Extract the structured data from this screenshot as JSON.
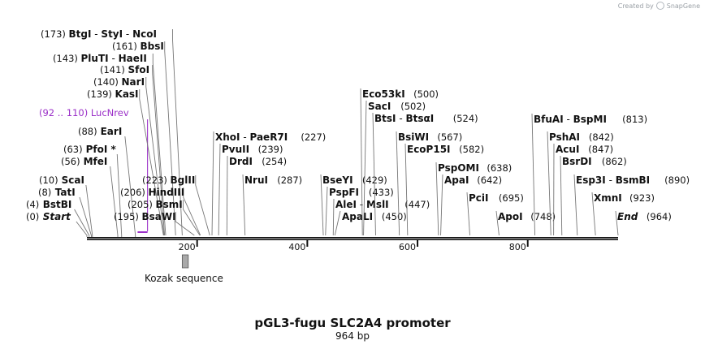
{
  "watermark": {
    "prefix": "Created by",
    "brand": "SnapGene",
    "logo_icon": "snapgene-logo-icon"
  },
  "plasmid": {
    "name": "pGL3-fugu SLC2A4 promoter",
    "length_label": "964 bp",
    "length": 964
  },
  "axis": {
    "ticks": [
      200,
      400,
      600,
      800
    ]
  },
  "features": [
    {
      "name": "Kozak sequence",
      "start": 173,
      "end": 184,
      "color": "#a9a9a9"
    }
  ],
  "primers": [
    {
      "name": "LucNrev",
      "range_label": "(92 .. 110)",
      "start": 92,
      "end": 110,
      "color": "#9b30c8"
    }
  ],
  "sites": [
    {
      "pos": 0,
      "pos_label": "(0)",
      "names": [
        "Start"
      ],
      "italic": true
    },
    {
      "pos": 4,
      "pos_label": "(4)",
      "names": [
        "BstBI"
      ]
    },
    {
      "pos": 8,
      "pos_label": "(8)",
      "names": [
        "TatI"
      ]
    },
    {
      "pos": 10,
      "pos_label": "(10)",
      "names": [
        "ScaI"
      ]
    },
    {
      "pos": 56,
      "pos_label": "(56)",
      "names": [
        "MfeI"
      ]
    },
    {
      "pos": 63,
      "pos_label": "(63)",
      "names": [
        "PfoI *"
      ]
    },
    {
      "pos": 88,
      "pos_label": "(88)",
      "names": [
        "EarI"
      ]
    },
    {
      "pos": 139,
      "pos_label": "(139)",
      "names": [
        "KasI"
      ]
    },
    {
      "pos": 140,
      "pos_label": "(140)",
      "names": [
        "NarI"
      ]
    },
    {
      "pos": 141,
      "pos_label": "(141)",
      "names": [
        "SfoI"
      ]
    },
    {
      "pos": 143,
      "pos_label": "(143)",
      "names": [
        "PluTI",
        "HaeII"
      ]
    },
    {
      "pos": 161,
      "pos_label": "(161)",
      "names": [
        "BbsI"
      ]
    },
    {
      "pos": 173,
      "pos_label": "(173)",
      "names": [
        "BtgI",
        "StyI",
        "NcoI"
      ]
    },
    {
      "pos": 195,
      "pos_label": "(195)",
      "names": [
        "BsaWI"
      ]
    },
    {
      "pos": 205,
      "pos_label": "(205)",
      "names": [
        "BsmI"
      ]
    },
    {
      "pos": 206,
      "pos_label": "(206)",
      "names": [
        "HindIII"
      ]
    },
    {
      "pos": 223,
      "pos_label": "(223)",
      "names": [
        "BglII"
      ]
    },
    {
      "pos": 227,
      "pos_label": "(227)",
      "names": [
        "XhoI",
        "PaeR7I"
      ]
    },
    {
      "pos": 239,
      "pos_label": "(239)",
      "names": [
        "PvuII"
      ]
    },
    {
      "pos": 254,
      "pos_label": "(254)",
      "names": [
        "DrdI"
      ]
    },
    {
      "pos": 287,
      "pos_label": "(287)",
      "names": [
        "NruI"
      ]
    },
    {
      "pos": 429,
      "pos_label": "(429)",
      "names": [
        "BseYI"
      ]
    },
    {
      "pos": 433,
      "pos_label": "(433)",
      "names": [
        "PspFI"
      ]
    },
    {
      "pos": 447,
      "pos_label": "(447)",
      "names": [
        "AleI",
        "MslI"
      ]
    },
    {
      "pos": 450,
      "pos_label": "(450)",
      "names": [
        "ApaLI"
      ]
    },
    {
      "pos": 500,
      "pos_label": "(500)",
      "names": [
        "Eco53kI"
      ]
    },
    {
      "pos": 502,
      "pos_label": "(502)",
      "names": [
        "SacI"
      ]
    },
    {
      "pos": 524,
      "pos_label": "(524)",
      "names": [
        "BtsI",
        "BtsαI"
      ]
    },
    {
      "pos": 567,
      "pos_label": "(567)",
      "names": [
        "BsiWI"
      ]
    },
    {
      "pos": 582,
      "pos_label": "(582)",
      "names": [
        "EcoP15I"
      ]
    },
    {
      "pos": 638,
      "pos_label": "(638)",
      "names": [
        "PspOMI"
      ]
    },
    {
      "pos": 642,
      "pos_label": "(642)",
      "names": [
        "ApaI"
      ]
    },
    {
      "pos": 695,
      "pos_label": "(695)",
      "names": [
        "PciI"
      ]
    },
    {
      "pos": 748,
      "pos_label": "(748)",
      "names": [
        "ApoI"
      ]
    },
    {
      "pos": 813,
      "pos_label": "(813)",
      "names": [
        "BfuAI",
        "BspMI"
      ]
    },
    {
      "pos": 842,
      "pos_label": "(842)",
      "names": [
        "PshAI"
      ]
    },
    {
      "pos": 847,
      "pos_label": "(847)",
      "names": [
        "AcuI"
      ]
    },
    {
      "pos": 862,
      "pos_label": "(862)",
      "names": [
        "BsrDI"
      ]
    },
    {
      "pos": 890,
      "pos_label": "(890)",
      "names": [
        "Esp3I",
        "BsmBI"
      ]
    },
    {
      "pos": 923,
      "pos_label": "(923)",
      "names": [
        "XmnI"
      ]
    },
    {
      "pos": 964,
      "pos_label": "(964)",
      "names": [
        "End"
      ],
      "italic": true
    }
  ]
}
